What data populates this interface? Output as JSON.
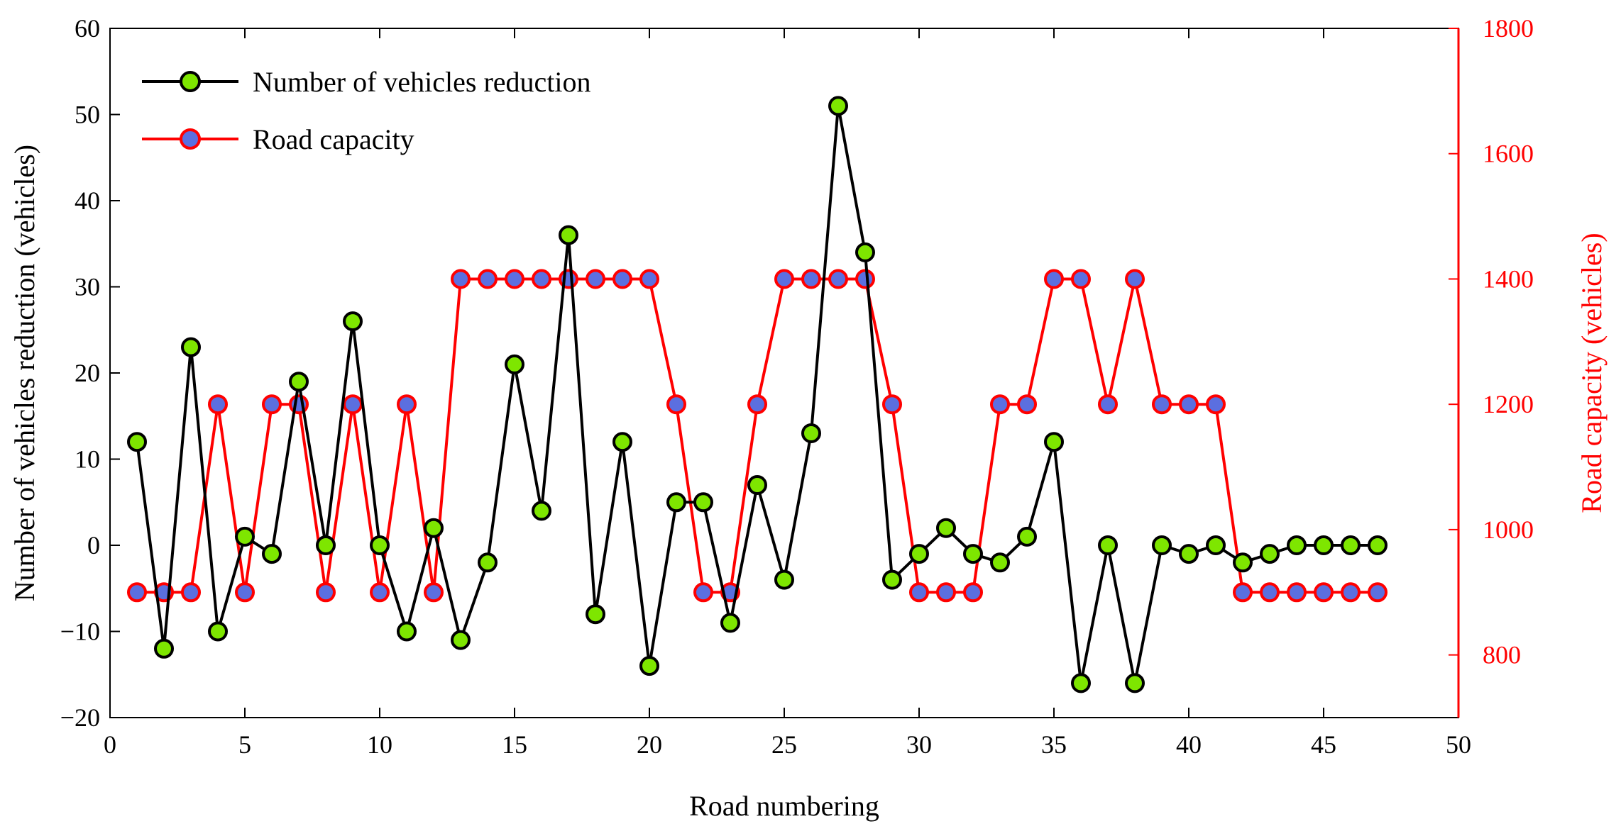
{
  "chart_data": {
    "type": "line",
    "xlabel": "Road numbering",
    "ylabel_left": "Number of vehicles reduction (vehicles)",
    "ylabel_right": "Road capacity (vehicles)",
    "xlim": [
      0,
      50
    ],
    "ylim_left": [
      -20,
      60
    ],
    "ylim_right": [
      700,
      1800
    ],
    "x_ticks": [
      0,
      5,
      10,
      15,
      20,
      25,
      30,
      35,
      40,
      45,
      50
    ],
    "y_left_ticks": [
      -20,
      -10,
      0,
      10,
      20,
      30,
      40,
      50,
      60
    ],
    "y_right_ticks": [
      800,
      1000,
      1200,
      1400,
      1600,
      1800
    ],
    "grid": false,
    "legend_position": "top-left",
    "x": [
      1,
      2,
      3,
      4,
      5,
      6,
      7,
      8,
      9,
      10,
      11,
      12,
      13,
      14,
      15,
      16,
      17,
      18,
      19,
      20,
      21,
      22,
      23,
      24,
      25,
      26,
      27,
      28,
      29,
      30,
      31,
      32,
      33,
      34,
      35,
      36,
      37,
      38,
      39,
      40,
      41,
      42,
      43,
      44,
      45,
      46,
      47
    ],
    "series": [
      {
        "name": "Number of vehicles reduction",
        "axis": "left",
        "line_color": "#000000",
        "marker_face": "#7ee600",
        "marker_edge": "#000000",
        "values": [
          12,
          -12,
          23,
          -10,
          1,
          -1,
          19,
          0,
          26,
          0,
          -10,
          2,
          -11,
          -2,
          21,
          4,
          36,
          -8,
          12,
          -14,
          5,
          5,
          -9,
          7,
          -4,
          13,
          51,
          34,
          -4,
          -1,
          2,
          -1,
          -2,
          1,
          12,
          -16,
          0,
          -16,
          0,
          -1,
          0,
          -2,
          -1,
          0,
          0,
          0,
          0
        ]
      },
      {
        "name": "Road capacity",
        "axis": "right",
        "line_color": "#ff0000",
        "marker_face": "#5b6fe0",
        "marker_edge": "#ff0000",
        "values": [
          900,
          900,
          900,
          1200,
          900,
          1200,
          1200,
          900,
          1200,
          900,
          1200,
          900,
          1400,
          1400,
          1400,
          1400,
          1400,
          1400,
          1400,
          1400,
          1200,
          900,
          900,
          1200,
          1400,
          1400,
          1400,
          1400,
          1200,
          900,
          900,
          900,
          1200,
          1200,
          1400,
          1400,
          1200,
          1400,
          1200,
          1200,
          1200,
          900,
          900,
          900,
          900,
          900,
          900
        ]
      }
    ]
  }
}
